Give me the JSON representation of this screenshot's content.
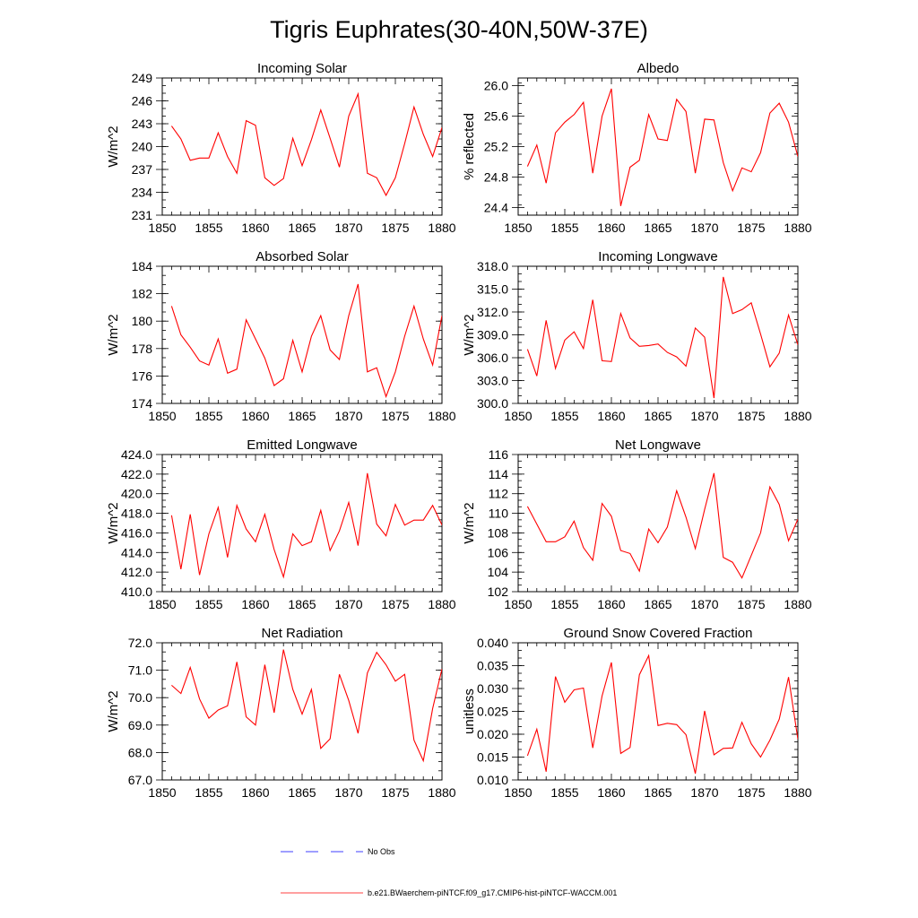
{
  "title": "Tigris Euphrates(30-40N,50W-37E)",
  "colors": {
    "series": "#ff0000",
    "obs": "#0000ff",
    "frame": "#000000"
  },
  "legend": {
    "obs_label": "No Obs",
    "model_label": "b.e21.BWaerchem-piNTCF.f09_g17.CMIP6-hist-piNTCF-WACCM.001"
  },
  "chart_data": [
    {
      "type": "line",
      "title": "Incoming Solar",
      "xlabel": "",
      "ylabel": "W/m^2",
      "xlim": [
        1850,
        1880
      ],
      "ylim": [
        231,
        249
      ],
      "xticks": [
        1850,
        1855,
        1860,
        1865,
        1870,
        1875,
        1880
      ],
      "yticks": [
        "231",
        "234",
        "237",
        "240",
        "243",
        "246",
        "249"
      ],
      "x": [
        1851,
        1852,
        1853,
        1854,
        1855,
        1856,
        1857,
        1858,
        1859,
        1860,
        1861,
        1862,
        1863,
        1864,
        1865,
        1866,
        1867,
        1868,
        1869,
        1870,
        1871,
        1872,
        1873,
        1874,
        1875,
        1876,
        1877,
        1878,
        1879,
        1880
      ],
      "series": [
        {
          "values": [
            242.7,
            241.0,
            238.2,
            238.5,
            238.5,
            241.8,
            238.7,
            236.5,
            243.4,
            242.8,
            235.9,
            234.9,
            235.8,
            241.1,
            237.5,
            240.9,
            244.8,
            241.1,
            237.3,
            244.0,
            246.9,
            236.5,
            235.9,
            233.6,
            235.9,
            240.4,
            245.2,
            241.6,
            238.7,
            242.5
          ]
        }
      ]
    },
    {
      "type": "line",
      "title": "Albedo",
      "xlabel": "",
      "ylabel": "% reflected",
      "xlim": [
        1850,
        1880
      ],
      "ylim": [
        24.3,
        26.1
      ],
      "xticks": [
        1850,
        1855,
        1860,
        1865,
        1870,
        1875,
        1880
      ],
      "yticks": [
        "24.4",
        "24.8",
        "25.2",
        "25.6",
        "26.0"
      ],
      "x": [
        1851,
        1852,
        1853,
        1854,
        1855,
        1856,
        1857,
        1858,
        1859,
        1860,
        1861,
        1862,
        1863,
        1864,
        1865,
        1866,
        1867,
        1868,
        1869,
        1870,
        1871,
        1872,
        1873,
        1874,
        1875,
        1876,
        1877,
        1878,
        1879,
        1880
      ],
      "series": [
        {
          "values": [
            24.94,
            25.22,
            24.72,
            25.38,
            25.52,
            25.62,
            25.78,
            24.85,
            25.6,
            25.96,
            24.42,
            24.93,
            25.02,
            25.62,
            25.3,
            25.28,
            25.82,
            25.66,
            24.85,
            25.56,
            25.55,
            24.99,
            24.62,
            24.92,
            24.87,
            25.12,
            25.64,
            25.77,
            25.52,
            25.07
          ]
        }
      ]
    },
    {
      "type": "line",
      "title": "Absorbed Solar",
      "xlabel": "",
      "ylabel": "W/m^2",
      "xlim": [
        1850,
        1880
      ],
      "ylim": [
        174,
        184
      ],
      "xticks": [
        1850,
        1855,
        1860,
        1865,
        1870,
        1875,
        1880
      ],
      "yticks": [
        "174",
        "176",
        "178",
        "180",
        "182",
        "184"
      ],
      "x": [
        1851,
        1852,
        1853,
        1854,
        1855,
        1856,
        1857,
        1858,
        1859,
        1860,
        1861,
        1862,
        1863,
        1864,
        1865,
        1866,
        1867,
        1868,
        1869,
        1870,
        1871,
        1872,
        1873,
        1874,
        1875,
        1876,
        1877,
        1878,
        1879,
        1880
      ],
      "series": [
        {
          "values": [
            181.1,
            179.0,
            178.1,
            177.1,
            176.8,
            178.7,
            176.2,
            176.5,
            180.1,
            178.7,
            177.3,
            175.3,
            175.8,
            178.6,
            176.3,
            178.9,
            180.4,
            177.9,
            177.2,
            180.4,
            182.7,
            176.3,
            176.6,
            174.5,
            176.3,
            178.9,
            181.1,
            178.7,
            176.8,
            180.4
          ]
        }
      ]
    },
    {
      "type": "line",
      "title": "Incoming Longwave",
      "xlabel": "",
      "ylabel": "W/m^2",
      "xlim": [
        1850,
        1880
      ],
      "ylim": [
        300,
        318
      ],
      "xticks": [
        1850,
        1855,
        1860,
        1865,
        1870,
        1875,
        1880
      ],
      "yticks": [
        "300.0",
        "303.0",
        "306.0",
        "309.0",
        "312.0",
        "315.0",
        "318.0"
      ],
      "x": [
        1851,
        1852,
        1853,
        1854,
        1855,
        1856,
        1857,
        1858,
        1859,
        1860,
        1861,
        1862,
        1863,
        1864,
        1865,
        1866,
        1867,
        1868,
        1869,
        1870,
        1871,
        1872,
        1873,
        1874,
        1875,
        1876,
        1877,
        1878,
        1879,
        1880
      ],
      "series": [
        {
          "values": [
            307.1,
            303.6,
            310.9,
            304.6,
            308.3,
            309.4,
            307.2,
            313.6,
            305.6,
            305.5,
            311.8,
            308.6,
            307.5,
            307.6,
            307.8,
            306.7,
            306.1,
            304.9,
            309.9,
            308.7,
            300.7,
            316.6,
            311.8,
            312.3,
            313.2,
            309.1,
            304.8,
            306.6,
            311.6,
            307.7
          ]
        }
      ]
    },
    {
      "type": "line",
      "title": "Emitted Longwave",
      "xlabel": "",
      "ylabel": "W/m^2",
      "xlim": [
        1850,
        1880
      ],
      "ylim": [
        410,
        424
      ],
      "xticks": [
        1850,
        1855,
        1860,
        1865,
        1870,
        1875,
        1880
      ],
      "yticks": [
        "410.0",
        "412.0",
        "414.0",
        "416.0",
        "418.0",
        "420.0",
        "422.0",
        "424.0"
      ],
      "x": [
        1851,
        1852,
        1853,
        1854,
        1855,
        1856,
        1857,
        1858,
        1859,
        1860,
        1861,
        1862,
        1863,
        1864,
        1865,
        1866,
        1867,
        1868,
        1869,
        1870,
        1871,
        1872,
        1873,
        1874,
        1875,
        1876,
        1877,
        1878,
        1879,
        1880
      ],
      "series": [
        {
          "values": [
            417.8,
            412.3,
            417.9,
            411.7,
            415.9,
            418.6,
            413.5,
            418.8,
            416.4,
            415.1,
            417.9,
            414.3,
            411.5,
            415.9,
            414.7,
            415.1,
            418.3,
            414.2,
            416.2,
            419.1,
            414.7,
            422.1,
            416.9,
            415.7,
            418.9,
            416.8,
            417.3,
            417.3,
            418.8,
            416.8
          ]
        }
      ]
    },
    {
      "type": "line",
      "title": "Net Longwave",
      "xlabel": "",
      "ylabel": "W/m^2",
      "xlim": [
        1850,
        1880
      ],
      "ylim": [
        102,
        116
      ],
      "xticks": [
        1850,
        1855,
        1860,
        1865,
        1870,
        1875,
        1880
      ],
      "yticks": [
        "102",
        "104",
        "106",
        "108",
        "110",
        "112",
        "114",
        "116"
      ],
      "x": [
        1851,
        1852,
        1853,
        1854,
        1855,
        1856,
        1857,
        1858,
        1859,
        1860,
        1861,
        1862,
        1863,
        1864,
        1865,
        1866,
        1867,
        1868,
        1869,
        1870,
        1871,
        1872,
        1873,
        1874,
        1875,
        1876,
        1877,
        1878,
        1879,
        1880
      ],
      "series": [
        {
          "values": [
            110.7,
            108.9,
            107.1,
            107.1,
            107.6,
            109.2,
            106.5,
            105.2,
            111.0,
            109.7,
            106.2,
            105.9,
            104.1,
            108.4,
            107.0,
            108.6,
            112.3,
            109.6,
            106.4,
            110.4,
            114.1,
            105.5,
            105.0,
            103.4,
            105.7,
            108.0,
            112.7,
            110.9,
            107.2,
            109.4
          ]
        }
      ]
    },
    {
      "type": "line",
      "title": "Net Radiation",
      "xlabel": "",
      "ylabel": "W/m^2",
      "xlim": [
        1850,
        1880
      ],
      "ylim": [
        67,
        72
      ],
      "xticks": [
        1850,
        1855,
        1860,
        1865,
        1870,
        1875,
        1880
      ],
      "yticks": [
        "67.0",
        "68.0",
        "69.0",
        "70.0",
        "71.0",
        "72.0"
      ],
      "x": [
        1851,
        1852,
        1853,
        1854,
        1855,
        1856,
        1857,
        1858,
        1859,
        1860,
        1861,
        1862,
        1863,
        1864,
        1865,
        1866,
        1867,
        1868,
        1869,
        1870,
        1871,
        1872,
        1873,
        1874,
        1875,
        1876,
        1877,
        1878,
        1879,
        1880
      ],
      "series": [
        {
          "values": [
            70.45,
            70.15,
            71.1,
            69.95,
            69.25,
            69.55,
            69.7,
            71.3,
            69.3,
            69.0,
            71.2,
            69.45,
            71.75,
            70.3,
            69.4,
            70.3,
            68.15,
            68.5,
            70.85,
            69.9,
            68.7,
            70.9,
            71.65,
            71.2,
            70.6,
            70.85,
            68.45,
            67.7,
            69.6,
            71.05
          ]
        }
      ]
    },
    {
      "type": "line",
      "title": "Ground Snow Covered Fraction",
      "xlabel": "",
      "ylabel": "unitless",
      "xlim": [
        1850,
        1880
      ],
      "ylim": [
        0.01,
        0.04
      ],
      "xticks": [
        1850,
        1855,
        1860,
        1865,
        1870,
        1875,
        1880
      ],
      "yticks": [
        "0.010",
        "0.015",
        "0.020",
        "0.025",
        "0.030",
        "0.035",
        "0.040"
      ],
      "x": [
        1851,
        1852,
        1853,
        1854,
        1855,
        1856,
        1857,
        1858,
        1859,
        1860,
        1861,
        1862,
        1863,
        1864,
        1865,
        1866,
        1867,
        1868,
        1869,
        1870,
        1871,
        1872,
        1873,
        1874,
        1875,
        1876,
        1877,
        1878,
        1879,
        1880
      ],
      "series": [
        {
          "values": [
            0.0153,
            0.0211,
            0.0118,
            0.0326,
            0.027,
            0.0297,
            0.0301,
            0.017,
            0.0284,
            0.0357,
            0.0158,
            0.0171,
            0.033,
            0.0372,
            0.0219,
            0.0224,
            0.0221,
            0.0199,
            0.0114,
            0.0251,
            0.0155,
            0.0169,
            0.017,
            0.0226,
            0.0179,
            0.015,
            0.0187,
            0.0233,
            0.0325,
            0.0189
          ]
        }
      ]
    }
  ]
}
